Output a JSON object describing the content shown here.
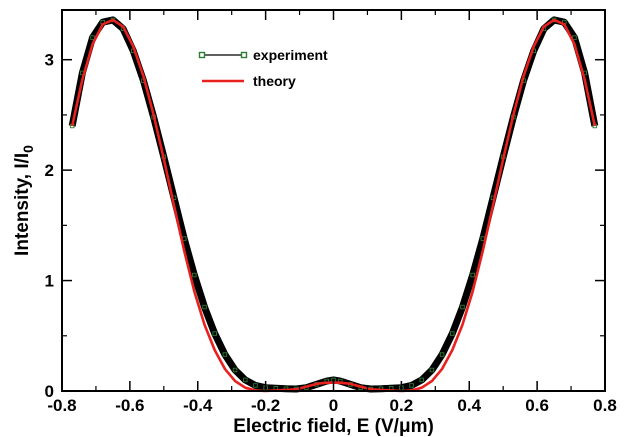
{
  "chart_data": {
    "type": "line",
    "title": "",
    "xlabel": "Electric field, E (V/μm)",
    "ylabel": "Intensity, I/I",
    "ylabel_subscript": "0",
    "xlim": [
      -0.8,
      0.8
    ],
    "ylim": [
      0,
      3.45
    ],
    "x_ticks": [
      -0.8,
      -0.6,
      -0.4,
      -0.2,
      0,
      0.2,
      0.4,
      0.6,
      0.8
    ],
    "x_tick_labels": [
      "-0.8",
      "-0.6",
      "-0.4",
      "-0.2",
      "0",
      "0.2",
      "0.4",
      "0.6",
      "0.8"
    ],
    "y_ticks": [
      0,
      1,
      2,
      3
    ],
    "y_tick_labels": [
      "0",
      "1",
      "2",
      "3"
    ],
    "grid": false,
    "legend_position": "top-center",
    "series": [
      {
        "name": "experiment",
        "color": "#000000",
        "marker_color": "#2e7d32",
        "marker": "square",
        "x": [
          -0.77,
          -0.74,
          -0.71,
          -0.68,
          -0.65,
          -0.62,
          -0.59,
          -0.56,
          -0.53,
          -0.5,
          -0.47,
          -0.44,
          -0.41,
          -0.38,
          -0.35,
          -0.32,
          -0.29,
          -0.26,
          -0.23,
          -0.2,
          -0.17,
          -0.14,
          -0.11,
          -0.08,
          -0.05,
          -0.02,
          0,
          0.02,
          0.05,
          0.08,
          0.11,
          0.14,
          0.17,
          0.2,
          0.23,
          0.26,
          0.29,
          0.32,
          0.35,
          0.38,
          0.41,
          0.44,
          0.47,
          0.5,
          0.53,
          0.56,
          0.59,
          0.62,
          0.65,
          0.68,
          0.71,
          0.74,
          0.77
        ],
        "y": [
          2.4,
          2.88,
          3.2,
          3.34,
          3.36,
          3.28,
          3.08,
          2.81,
          2.48,
          2.12,
          1.75,
          1.38,
          1.05,
          0.76,
          0.52,
          0.33,
          0.19,
          0.1,
          0.05,
          0.03,
          0.025,
          0.02,
          0.018,
          0.03,
          0.06,
          0.09,
          0.1,
          0.09,
          0.06,
          0.03,
          0.018,
          0.02,
          0.025,
          0.03,
          0.05,
          0.1,
          0.19,
          0.33,
          0.52,
          0.76,
          1.05,
          1.38,
          1.75,
          2.12,
          2.48,
          2.81,
          3.08,
          3.28,
          3.36,
          3.34,
          3.2,
          2.88,
          2.4
        ]
      },
      {
        "name": "theory",
        "color": "#e8201e",
        "marker": "none",
        "x": [
          -0.77,
          -0.74,
          -0.71,
          -0.68,
          -0.65,
          -0.62,
          -0.59,
          -0.56,
          -0.53,
          -0.5,
          -0.47,
          -0.44,
          -0.41,
          -0.38,
          -0.35,
          -0.32,
          -0.29,
          -0.26,
          -0.23,
          -0.2,
          -0.17,
          -0.14,
          -0.11,
          -0.08,
          -0.05,
          -0.02,
          0,
          0.02,
          0.05,
          0.08,
          0.11,
          0.14,
          0.17,
          0.2,
          0.23,
          0.26,
          0.29,
          0.32,
          0.35,
          0.38,
          0.41,
          0.44,
          0.47,
          0.5,
          0.53,
          0.56,
          0.59,
          0.62,
          0.65,
          0.68,
          0.71,
          0.74,
          0.77
        ],
        "y": [
          2.4,
          2.82,
          3.14,
          3.32,
          3.36,
          3.3,
          3.12,
          2.85,
          2.5,
          2.1,
          1.68,
          1.27,
          0.9,
          0.6,
          0.37,
          0.2,
          0.09,
          0.03,
          0.005,
          0.0,
          0.005,
          0.01,
          0.015,
          0.04,
          0.065,
          0.075,
          0.075,
          0.075,
          0.065,
          0.04,
          0.015,
          0.01,
          0.005,
          0.0,
          0.005,
          0.03,
          0.09,
          0.2,
          0.37,
          0.6,
          0.9,
          1.27,
          1.68,
          2.1,
          2.5,
          2.85,
          3.12,
          3.3,
          3.36,
          3.32,
          3.14,
          2.82,
          2.4
        ]
      }
    ]
  }
}
